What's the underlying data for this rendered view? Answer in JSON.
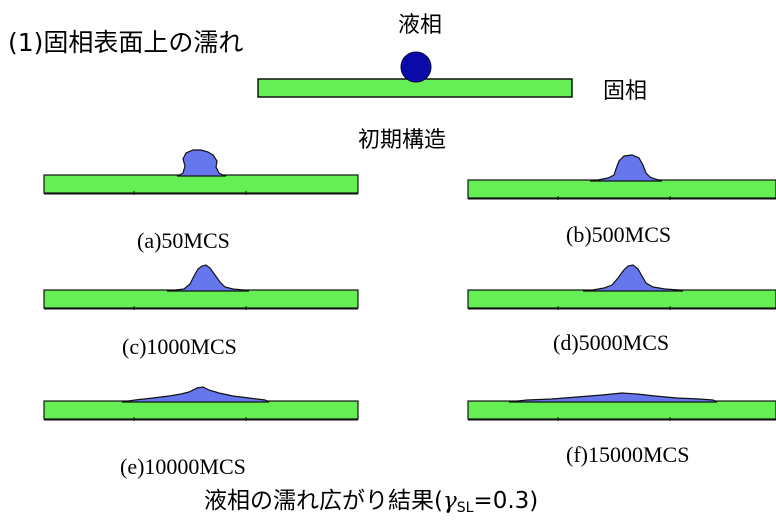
{
  "heading": "(1)固相表面上の濡れ",
  "labels": {
    "liquid": "液相",
    "solid": "固相",
    "initial": "初期構造"
  },
  "panels": [
    {
      "label": "(a)50MCS"
    },
    {
      "label": "(b)500MCS"
    },
    {
      "label": "(c)1000MCS"
    },
    {
      "label": "(d)5000MCS"
    },
    {
      "label": "(e)10000MCS"
    },
    {
      "label": "(f)15000MCS"
    }
  ],
  "caption": {
    "prefix": "液相の濡れ広がり結果(",
    "symbol": "γ",
    "subscript": "SL",
    "suffix": "=0.3)"
  },
  "colors": {
    "substrate": "#66ee55",
    "droplet_initial": "#0a0aa8",
    "droplet": "#6677ee",
    "outline": "#111111"
  }
}
